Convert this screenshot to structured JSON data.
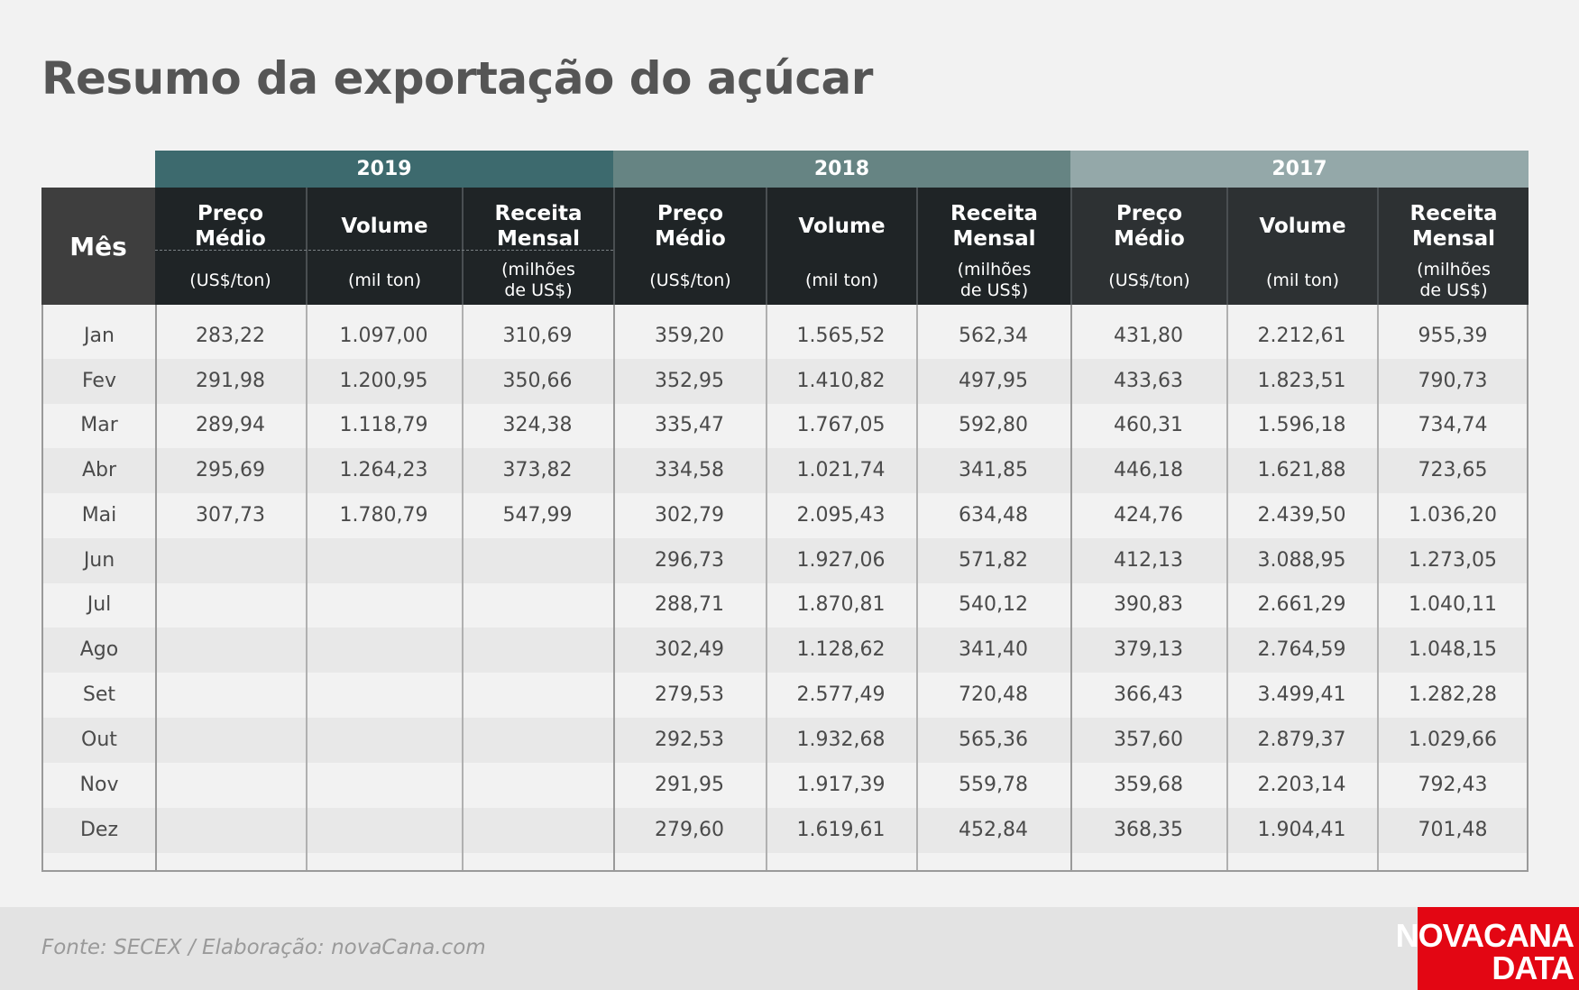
{
  "title": "Resumo da exportação do açúcar",
  "source": "Fonte: SECEX  / Elaboração: novaCana.com",
  "logo": {
    "line1": "NOVACANA",
    "line2": "DATA"
  },
  "chart_data": {
    "type": "table",
    "title": "Resumo da exportação do açúcar",
    "row_header": "Mês",
    "groups": [
      {
        "year": "2019",
        "color": "#3d6a6e"
      },
      {
        "year": "2018",
        "color": "#668483"
      },
      {
        "year": "2017",
        "color": "#94a8a9"
      }
    ],
    "columns": [
      {
        "name": "Preço Médio",
        "unit": "(US$/ton)"
      },
      {
        "name": "Volume",
        "unit": "(mil ton)"
      },
      {
        "name": "Receita Mensal",
        "unit": "(milhões\nde US$)"
      }
    ],
    "months": [
      "Jan",
      "Fev",
      "Mar",
      "Abr",
      "Mai",
      "Jun",
      "Jul",
      "Ago",
      "Set",
      "Out",
      "Nov",
      "Dez"
    ],
    "rows": [
      [
        "283,22",
        "1.097,00",
        "310,69",
        "359,20",
        "1.565,52",
        "562,34",
        "431,80",
        "2.212,61",
        "955,39"
      ],
      [
        "291,98",
        "1.200,95",
        "350,66",
        "352,95",
        "1.410,82",
        "497,95",
        "433,63",
        "1.823,51",
        "790,73"
      ],
      [
        "289,94",
        "1.118,79",
        "324,38",
        "335,47",
        "1.767,05",
        "592,80",
        "460,31",
        "1.596,18",
        "734,74"
      ],
      [
        "295,69",
        "1.264,23",
        "373,82",
        "334,58",
        "1.021,74",
        "341,85",
        "446,18",
        "1.621,88",
        "723,65"
      ],
      [
        "307,73",
        "1.780,79",
        "547,99",
        "302,79",
        "2.095,43",
        "634,48",
        "424,76",
        "2.439,50",
        "1.036,20"
      ],
      [
        "",
        "",
        "",
        "296,73",
        "1.927,06",
        "571,82",
        "412,13",
        "3.088,95",
        "1.273,05"
      ],
      [
        "",
        "",
        "",
        "288,71",
        "1.870,81",
        "540,12",
        "390,83",
        "2.661,29",
        "1.040,11"
      ],
      [
        "",
        "",
        "",
        "302,49",
        "1.128,62",
        "341,40",
        "379,13",
        "2.764,59",
        "1.048,15"
      ],
      [
        "",
        "",
        "",
        "279,53",
        "2.577,49",
        "720,48",
        "366,43",
        "3.499,41",
        "1.282,28"
      ],
      [
        "",
        "",
        "",
        "292,53",
        "1.932,68",
        "565,36",
        "357,60",
        "2.879,37",
        "1.029,66"
      ],
      [
        "",
        "",
        "",
        "291,95",
        "1.917,39",
        "559,78",
        "359,68",
        "2.203,14",
        "792,43"
      ],
      [
        "",
        "",
        "",
        "279,60",
        "1.619,61",
        "452,84",
        "368,35",
        "1.904,41",
        "701,48"
      ]
    ]
  }
}
